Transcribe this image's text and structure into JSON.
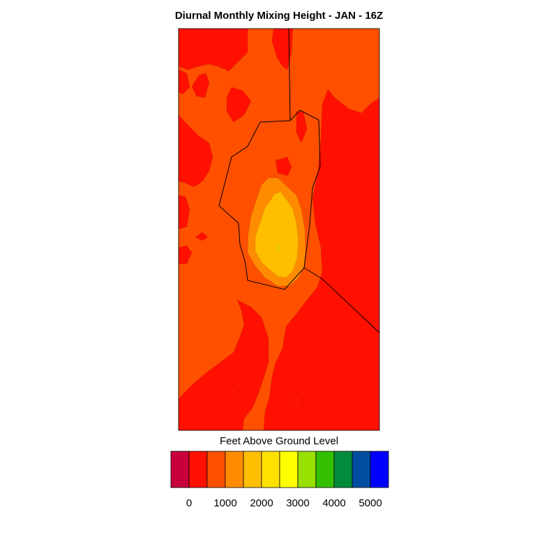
{
  "chart_data": {
    "type": "heatmap",
    "title": "Diurnal Monthly Mixing Height - JAN - 16Z",
    "colorbar": {
      "label": "Feet Above Ground Level",
      "colors": [
        "#c8003c",
        "#ff1000",
        "#ff5000",
        "#ff8c00",
        "#ffbe00",
        "#ffe100",
        "#ffff00",
        "#98e000",
        "#32c000",
        "#008c3c",
        "#004ea0",
        "#0000ff"
      ],
      "tick_values": [
        0,
        1000,
        2000,
        3000,
        4000,
        5000
      ]
    },
    "field_colors": {
      "below_0": "#c8003c",
      "0_500": "#ff1000",
      "500_1000": "#ff5000",
      "1000_1500": "#ff8c00",
      "1500_2000": "#ffbe00",
      "2000_2500": "#ffe100"
    },
    "units": "ft AGL"
  }
}
